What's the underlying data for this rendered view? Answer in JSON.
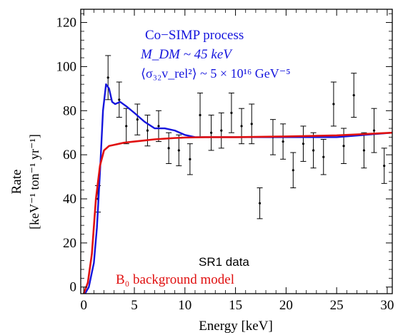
{
  "chart_data": {
    "type": "line",
    "xlabel": "Energy [keV]",
    "ylabel": "Rate",
    "ylabel_units": "[keV⁻¹ ton⁻¹ yr⁻¹]",
    "xlim": [
      -0.3,
      30.5
    ],
    "ylim": [
      -3,
      126
    ],
    "x_ticks": [
      0,
      5,
      10,
      15,
      20,
      25,
      30
    ],
    "y_ticks": [
      0,
      20,
      40,
      60,
      80,
      100,
      120
    ],
    "grid": false,
    "annotations": {
      "process": "Co−SIMP process",
      "mass": "M_DM ~ 45 keV",
      "cross_section": "⟨σ₃₂v_rel²⟩ ~ 5 × 10¹⁶ GeV⁻⁵",
      "data_label": "SR1 data",
      "background_label": "B₀ background model"
    },
    "colors": {
      "signal": "#1515dd",
      "background": "#e01010",
      "data": "#000000"
    },
    "series": [
      {
        "name": "Co−SIMP process",
        "color": "#1515dd",
        "x": [
          0,
          0.5,
          1,
          1.3,
          1.6,
          1.9,
          2.2,
          2.5,
          2.8,
          3.1,
          3.6,
          4.2,
          5,
          6,
          7,
          8,
          9,
          10,
          11,
          12,
          15,
          20,
          25,
          30.5
        ],
        "y": [
          -4,
          0,
          11,
          27,
          52,
          80,
          92,
          90,
          84,
          83,
          84,
          82,
          79,
          75,
          72,
          72,
          71,
          69,
          68,
          68,
          68,
          68,
          68,
          70
        ]
      },
      {
        "name": "B₀ background model",
        "color": "#e01010",
        "x": [
          -0.3,
          0,
          0.4,
          0.8,
          1.2,
          1.6,
          2,
          2.5,
          3,
          3.5,
          4,
          5,
          6,
          7,
          8,
          9,
          10,
          12,
          15,
          20,
          25,
          30.5
        ],
        "y": [
          -6,
          -3,
          2,
          15,
          40,
          55,
          62,
          64,
          64.5,
          65,
          65.5,
          66,
          66.5,
          67,
          67.3,
          67.6,
          67.8,
          68,
          68,
          68.3,
          68.8,
          70
        ]
      },
      {
        "name": "SR1 data",
        "color": "#000000",
        "points": [
          {
            "x": 1.4,
            "y": 40,
            "err": 6
          },
          {
            "x": 2.4,
            "y": 95,
            "err": 10
          },
          {
            "x": 3.5,
            "y": 85,
            "err": 8
          },
          {
            "x": 4.2,
            "y": 73,
            "err": 8
          },
          {
            "x": 5.3,
            "y": 76,
            "err": 7
          },
          {
            "x": 6.3,
            "y": 71,
            "err": 7
          },
          {
            "x": 7.4,
            "y": 73,
            "err": 7
          },
          {
            "x": 8.4,
            "y": 63,
            "err": 7
          },
          {
            "x": 9.4,
            "y": 62,
            "err": 7
          },
          {
            "x": 10.5,
            "y": 58,
            "err": 7
          },
          {
            "x": 11.5,
            "y": 78,
            "err": 10
          },
          {
            "x": 12.6,
            "y": 70,
            "err": 8
          },
          {
            "x": 13.6,
            "y": 71,
            "err": 8
          },
          {
            "x": 14.6,
            "y": 79,
            "err": 9
          },
          {
            "x": 15.6,
            "y": 73,
            "err": 8
          },
          {
            "x": 16.6,
            "y": 74,
            "err": 9
          },
          {
            "x": 17.4,
            "y": 38,
            "err": 7
          },
          {
            "x": 18.7,
            "y": 68,
            "err": 8
          },
          {
            "x": 19.7,
            "y": 66,
            "err": 8
          },
          {
            "x": 20.7,
            "y": 53,
            "err": 8
          },
          {
            "x": 21.7,
            "y": 65,
            "err": 8
          },
          {
            "x": 22.7,
            "y": 62,
            "err": 8
          },
          {
            "x": 23.7,
            "y": 59,
            "err": 8
          },
          {
            "x": 24.7,
            "y": 83,
            "err": 10
          },
          {
            "x": 25.7,
            "y": 64,
            "err": 8
          },
          {
            "x": 26.7,
            "y": 87,
            "err": 10
          },
          {
            "x": 27.7,
            "y": 62,
            "err": 8
          },
          {
            "x": 28.7,
            "y": 71,
            "err": 10
          },
          {
            "x": 29.7,
            "y": 55,
            "err": 8
          }
        ]
      }
    ]
  }
}
